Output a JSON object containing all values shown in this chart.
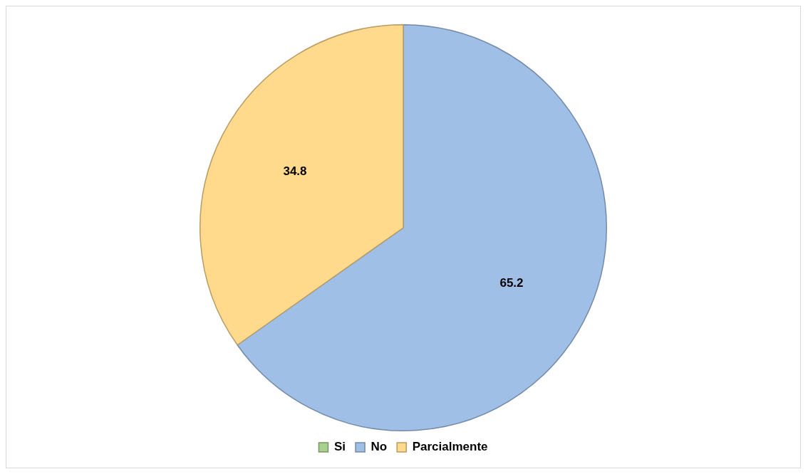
{
  "chart_data": {
    "type": "pie",
    "categories": [
      "Si",
      "No",
      "Parcialmente"
    ],
    "values": [
      0,
      65.2,
      34.8
    ],
    "colors": [
      "#a9d18e",
      "#a0bfe6",
      "#ffd98c"
    ],
    "value_labels": [
      null,
      "65.2",
      "34.8"
    ],
    "legend": "bottom"
  }
}
